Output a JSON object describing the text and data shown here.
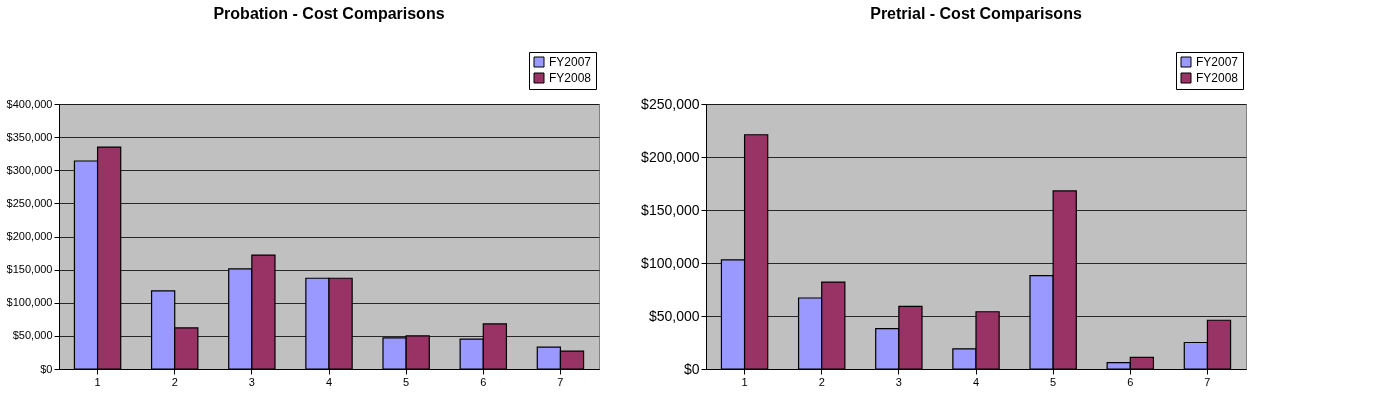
{
  "chart_data": [
    {
      "type": "bar",
      "title": "Probation - Cost Comparisons",
      "categories": [
        "1",
        "2",
        "3",
        "4",
        "5",
        "6",
        "7"
      ],
      "series": [
        {
          "name": "FY2007",
          "color": "#9999ff",
          "values": [
            314000,
            118000,
            151000,
            137000,
            47000,
            45000,
            33000
          ]
        },
        {
          "name": "FY2008",
          "color": "#993366",
          "values": [
            335000,
            62000,
            172000,
            137000,
            50000,
            68000,
            27000
          ]
        }
      ],
      "ylim": [
        0,
        400000
      ],
      "yticks": [
        {
          "value": 0,
          "label": "$0"
        },
        {
          "value": 50000,
          "label": "$50,000"
        },
        {
          "value": 100000,
          "label": "$100,000"
        },
        {
          "value": 150000,
          "label": "$150,000"
        },
        {
          "value": 200000,
          "label": "$200,000"
        },
        {
          "value": 250000,
          "label": "$250,000"
        },
        {
          "value": 300000,
          "label": "$300,000"
        },
        {
          "value": 350000,
          "label": "$350,000"
        },
        {
          "value": 400000,
          "label": "$400,000"
        }
      ],
      "grid": "y",
      "legend": "top right"
    },
    {
      "type": "bar",
      "title": "Pretrial - Cost Comparisons",
      "categories": [
        "1",
        "2",
        "3",
        "4",
        "5",
        "6",
        "7"
      ],
      "series": [
        {
          "name": "FY2007",
          "color": "#9999ff",
          "values": [
            103000,
            67000,
            38000,
            19000,
            88000,
            6000,
            25000
          ]
        },
        {
          "name": "FY2008",
          "color": "#993366",
          "values": [
            221000,
            82000,
            59000,
            54000,
            168000,
            11000,
            46000
          ]
        }
      ],
      "ylim": [
        0,
        250000
      ],
      "yticks": [
        {
          "value": 0,
          "label": "$0"
        },
        {
          "value": 50000,
          "label": "$50,000"
        },
        {
          "value": 100000,
          "label": "$100,000"
        },
        {
          "value": 150000,
          "label": "$150,000"
        },
        {
          "value": 200000,
          "label": "$200,000"
        },
        {
          "value": 250000,
          "label": "$250,000"
        }
      ],
      "grid": "y",
      "legend": "top right"
    }
  ]
}
